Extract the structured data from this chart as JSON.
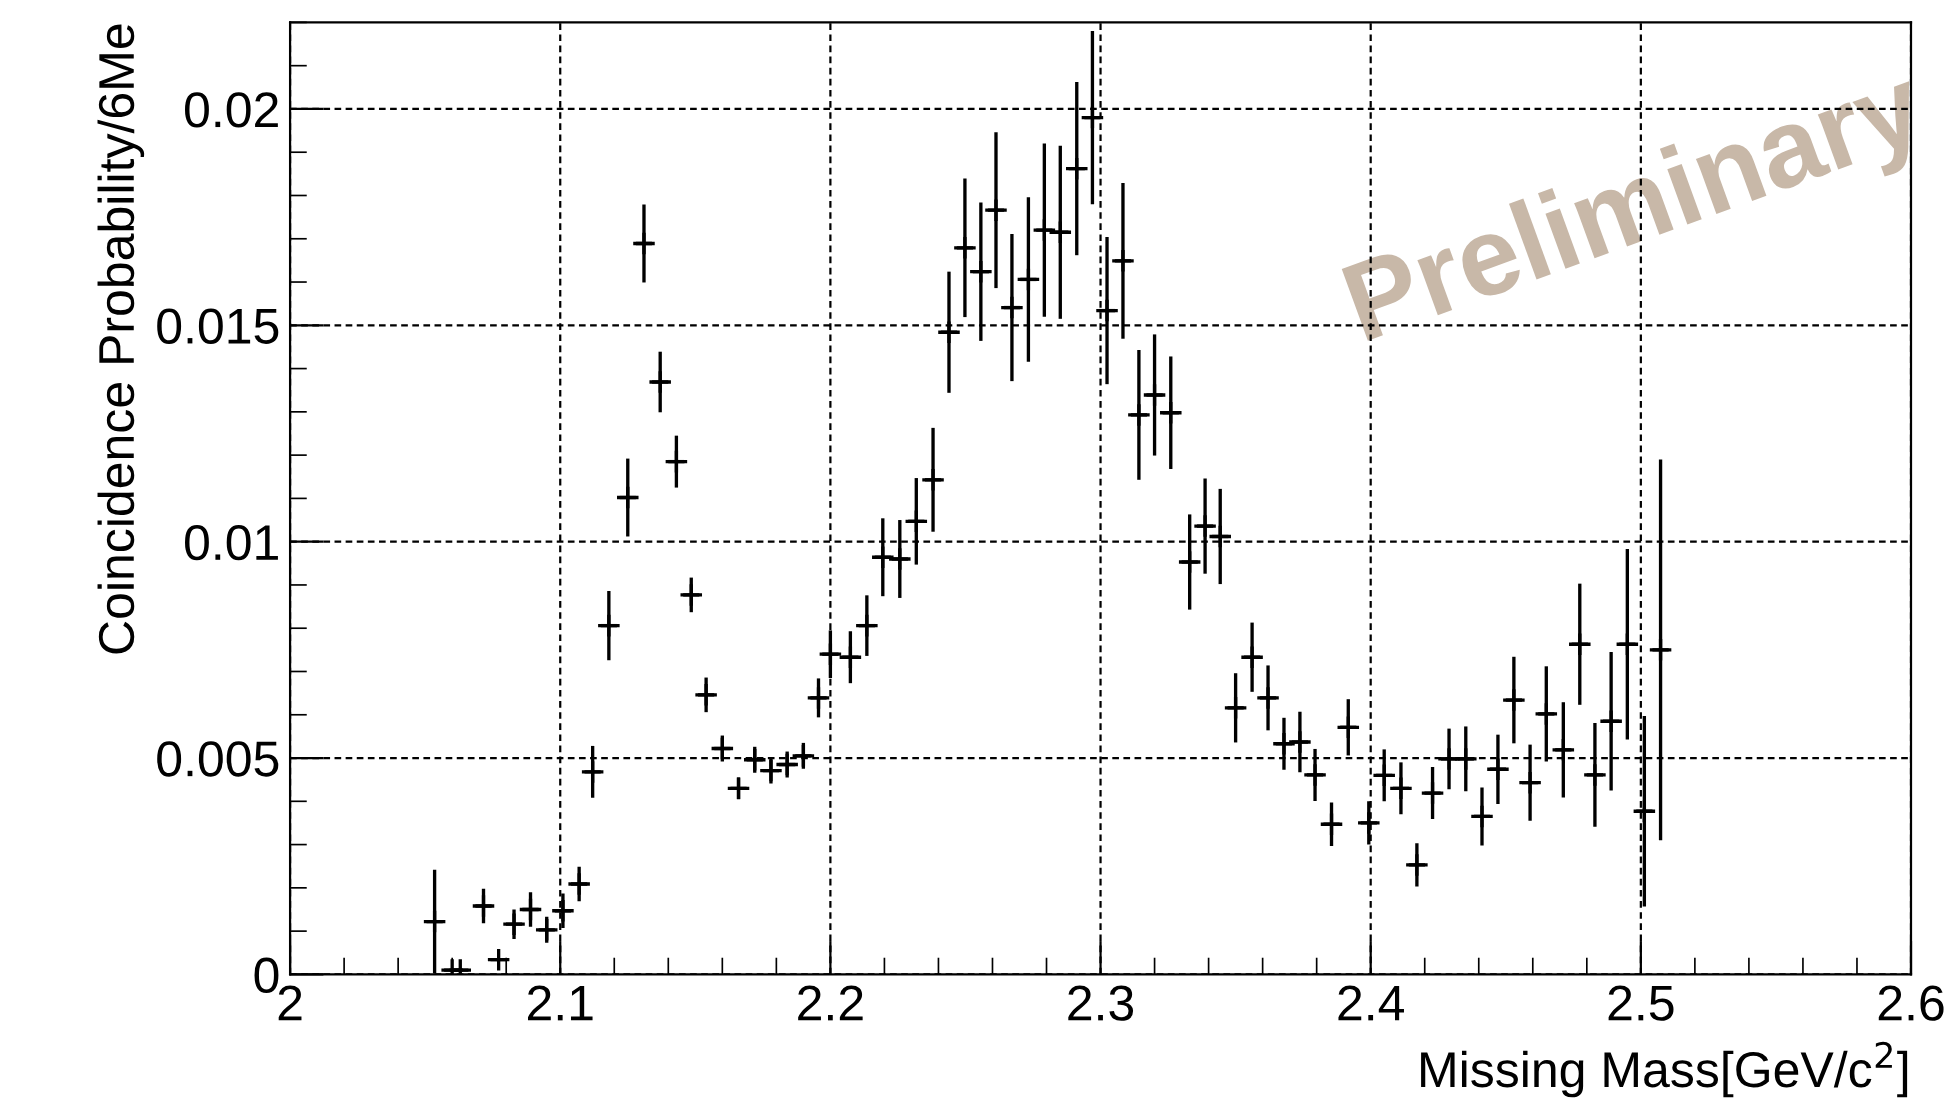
{
  "chart_data": {
    "type": "scatter",
    "xlabel": "Missing Mass[GeV/c$^{2}$]",
    "ylabel": "Coincidence Probability/6Me",
    "annotations": [
      "Preliminary"
    ],
    "marker": "cross",
    "grid": true,
    "color": "#000000",
    "xlim": [
      2,
      2.6
    ],
    "xticks": [
      2,
      2.1,
      2.2,
      2.3,
      2.4,
      2.5,
      2.6
    ],
    "ylim": [
      0,
      0.022
    ],
    "yticks": [
      0,
      0.005,
      0.01,
      0.015,
      0.02
    ],
    "x": [
      2.0535,
      2.06,
      2.063,
      2.0716,
      2.0772,
      2.0829,
      2.089,
      2.095,
      2.101,
      2.107,
      2.112,
      2.118,
      2.125,
      2.131,
      2.137,
      2.143,
      2.1485,
      2.154,
      2.16,
      2.166,
      2.172,
      2.178,
      2.184,
      2.19,
      2.1956,
      2.2,
      2.2074,
      2.2135,
      2.2194,
      2.2257,
      2.2318,
      2.238,
      2.2439,
      2.2498,
      2.2557,
      2.2613,
      2.2672,
      2.2733,
      2.2792,
      2.2851,
      2.2912,
      2.297,
      2.3024,
      2.3083,
      2.3142,
      2.32,
      2.326,
      2.333,
      2.3387,
      2.3443,
      2.35,
      2.3561,
      2.362,
      2.3679,
      2.3738,
      2.3794,
      2.3855,
      2.3917,
      2.3993,
      2.405,
      2.4112,
      2.4171,
      2.4229,
      2.429,
      2.4352,
      2.4412,
      2.4471,
      2.453,
      2.459,
      2.465,
      2.4713,
      2.4774,
      2.483,
      2.489,
      2.495,
      2.5013,
      2.5073
    ],
    "values": [
      0.00122,
      0.0001,
      0.0001,
      0.00158,
      0.00034,
      0.00116,
      0.0015,
      0.00103,
      0.00147,
      0.00209,
      0.00468,
      0.00806,
      0.01102,
      0.01689,
      0.01369,
      0.01185,
      0.00877,
      0.00646,
      0.00522,
      0.0043,
      0.00496,
      0.00471,
      0.00485,
      0.00505,
      0.00639,
      0.0074,
      0.00733,
      0.00806,
      0.00964,
      0.0096,
      0.01047,
      0.01143,
      0.01484,
      0.01679,
      0.01624,
      0.01766,
      0.01541,
      0.01606,
      0.0172,
      0.01715,
      0.01862,
      0.0198,
      0.01534,
      0.01649,
      0.01293,
      0.01339,
      0.01298,
      0.00953,
      0.01036,
      0.01012,
      0.00616,
      0.00733,
      0.00639,
      0.00533,
      0.00537,
      0.00461,
      0.00347,
      0.00571,
      0.0035,
      0.0046,
      0.0043,
      0.00253,
      0.00419,
      0.00498,
      0.00498,
      0.00365,
      0.00474,
      0.00634,
      0.00443,
      0.00602,
      0.00519,
      0.00763,
      0.00461,
      0.00585,
      0.00763,
      0.00377,
      0.0075
    ],
    "errors": [
      0.0012,
      null,
      null,
      0.0004,
      null,
      0.00034,
      0.0004,
      0.0003,
      0.0004,
      0.0004,
      0.0006,
      0.0008,
      0.0009,
      0.0009,
      0.0007,
      0.0006,
      0.0004,
      0.0004,
      0.0003,
      0.00025,
      0.0003,
      0.0003,
      0.0003,
      0.0003,
      0.00045,
      0.00055,
      0.0006,
      0.0007,
      0.0009,
      0.0009,
      0.001,
      0.0012,
      0.0014,
      0.0016,
      0.0016,
      0.0018,
      0.0017,
      0.0019,
      0.002,
      0.002,
      0.002,
      0.002,
      0.0017,
      0.0018,
      0.0015,
      0.0014,
      0.0013,
      0.0011,
      0.0011,
      0.0011,
      0.0008,
      0.0008,
      0.00075,
      0.0006,
      0.0007,
      0.0006,
      0.0005,
      0.00065,
      0.0005,
      0.0006,
      0.0006,
      0.0005,
      0.0006,
      0.0007,
      0.00075,
      0.00067,
      0.0008,
      0.001,
      0.00088,
      0.0011,
      0.0011,
      0.0014,
      0.0012,
      0.0016,
      0.0022,
      0.0022,
      0.0044
    ],
    "xerrors": [
      0.003,
      0.003,
      0.003,
      0.003,
      0.003,
      0.003,
      0.003,
      0.003,
      0.003,
      0.003,
      0.003,
      0.003,
      0.003,
      0.003,
      0.003,
      0.003,
      0.003,
      0.003,
      0.003,
      0.003,
      0.003,
      0.003,
      0.003,
      0.003,
      0.003,
      0.003,
      0.003,
      0.003,
      0.003,
      0.003,
      0.003,
      0.003,
      0.003,
      0.003,
      0.003,
      0.003,
      0.003,
      0.003,
      0.003,
      0.003,
      0.003,
      0.003,
      0.003,
      0.003,
      0.003,
      0.003,
      0.003,
      0.003,
      0.003,
      0.003,
      0.003,
      0.003,
      0.003,
      0.003,
      0.003,
      0.003,
      0.003,
      0.003,
      0.003,
      0.003,
      0.003,
      0.003,
      0.003,
      0.003,
      0.003,
      0.003,
      0.003,
      0.003,
      0.003,
      0.003,
      0.003,
      0.003,
      0.003,
      0.003,
      0.003,
      0.003,
      0.003
    ]
  }
}
